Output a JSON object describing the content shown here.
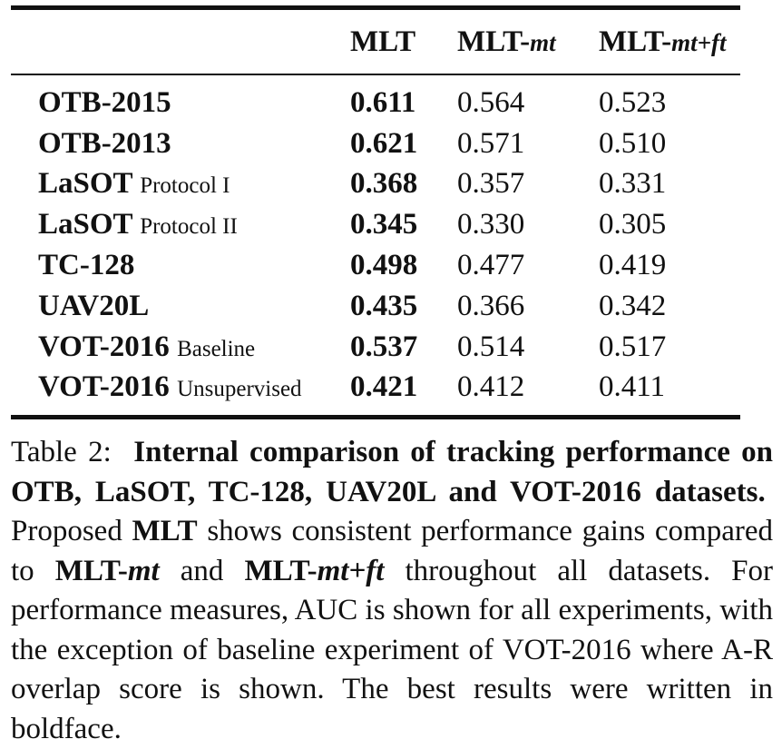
{
  "table": {
    "headers": {
      "col1": "MLT",
      "col2_main": "MLT-",
      "col2_suffix": "mt",
      "col3_main": "MLT-",
      "col3_suffix": "mt+ft"
    },
    "rows": [
      {
        "name": "OTB-2015",
        "protocol": "",
        "mlt": "0.611",
        "mlt_mt": "0.564",
        "mlt_mt_ft": "0.523"
      },
      {
        "name": "OTB-2013",
        "protocol": "",
        "mlt": "0.621",
        "mlt_mt": "0.571",
        "mlt_mt_ft": "0.510"
      },
      {
        "name": "LaSOT",
        "protocol": "Protocol I",
        "mlt": "0.368",
        "mlt_mt": "0.357",
        "mlt_mt_ft": "0.331"
      },
      {
        "name": "LaSOT",
        "protocol": "Protocol II",
        "mlt": "0.345",
        "mlt_mt": "0.330",
        "mlt_mt_ft": "0.305"
      },
      {
        "name": "TC-128",
        "protocol": "",
        "mlt": "0.498",
        "mlt_mt": "0.477",
        "mlt_mt_ft": "0.419"
      },
      {
        "name": "UAV20L",
        "protocol": "",
        "mlt": "0.435",
        "mlt_mt": "0.366",
        "mlt_mt_ft": "0.342"
      },
      {
        "name": "VOT-2016",
        "protocol": "Baseline",
        "mlt": "0.537",
        "mlt_mt": "0.514",
        "mlt_mt_ft": "0.517"
      },
      {
        "name": "VOT-2016",
        "protocol": "Unsupervised",
        "mlt": "0.421",
        "mlt_mt": "0.412",
        "mlt_mt_ft": "0.411"
      }
    ]
  },
  "caption": {
    "label": "Table 2:",
    "title": "Internal comparison of tracking performance on OTB, LaSOT, TC-128, UAV20L and VOT-2016 datasets.",
    "t1": "Proposed",
    "b1": "MLT",
    "t2": "shows consistent performance gains compared to",
    "b2": "MLT-",
    "i2": "mt",
    "t3": "and",
    "b3": "MLT-",
    "i3": "mt+ft",
    "t4": "throughout all datasets. For performance measures, AUC is shown for all experiments, with the exception of baseline experiment of VOT-2016 where A-R overlap score is shown. The best re­sults were written in boldface."
  }
}
